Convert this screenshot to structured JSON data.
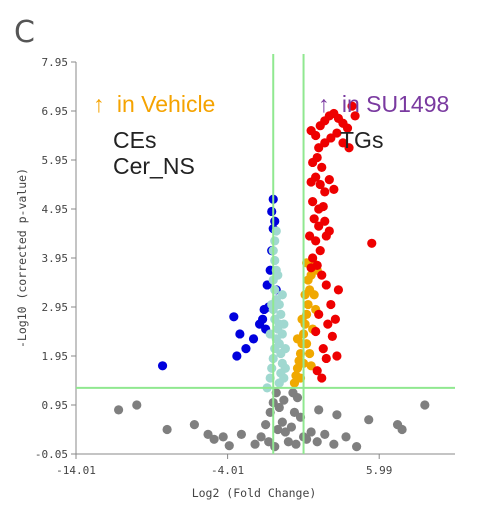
{
  "panel_label": "C",
  "annotations": {
    "left_arrow": "↑",
    "left_text": "in Vehicle",
    "left_color": "#f5a300",
    "right_arrow": "↑",
    "right_text": "in SU1498",
    "right_color": "#7a3aa0",
    "left_lipids": [
      "CEs",
      "Cer_NS"
    ],
    "right_lipids": [
      "TGs"
    ],
    "lipid_text_color": "#222222"
  },
  "chart_data": {
    "type": "scatter",
    "xlabel": "Log2 (Fold Change)",
    "ylabel": "-Log10 (corrected p-value)",
    "xlim": [
      -14.01,
      10.99
    ],
    "ylim": [
      -0.05,
      7.95
    ],
    "x_ticks": [
      "-14.01",
      "-4.01",
      "5.99"
    ],
    "x_tick_values": [
      -14.01,
      -4.01,
      5.99
    ],
    "y_ticks": [
      "7.95",
      "6.95",
      "5.95",
      "4.95",
      "3.95",
      "2.95",
      "1.95",
      "0.95",
      "-0.05"
    ],
    "y_tick_values": [
      7.95,
      6.95,
      5.95,
      4.95,
      3.95,
      2.95,
      1.95,
      0.95,
      -0.05
    ],
    "thresholds": {
      "x": [
        -1,
        1
      ],
      "y": 1.3,
      "color": "#90e890"
    },
    "series": [
      {
        "color": "#7f7f7f",
        "points": [
          [
            -10.0,
            0.95
          ],
          [
            -11.2,
            0.85
          ],
          [
            -8.0,
            0.45
          ],
          [
            -6.2,
            0.55
          ],
          [
            -5.3,
            0.35
          ],
          [
            -4.9,
            0.25
          ],
          [
            -4.3,
            0.3
          ],
          [
            -3.1,
            0.35
          ],
          [
            -3.9,
            0.12
          ],
          [
            -2.2,
            0.15
          ],
          [
            -1.8,
            0.3
          ],
          [
            -1.5,
            0.55
          ],
          [
            -1.2,
            0.8
          ],
          [
            -1.0,
            1.0
          ],
          [
            -0.8,
            1.2
          ],
          [
            -0.6,
            0.9
          ],
          [
            -0.4,
            0.6
          ],
          [
            -0.2,
            0.4
          ],
          [
            0.0,
            0.2
          ],
          [
            0.2,
            0.5
          ],
          [
            0.4,
            0.8
          ],
          [
            0.6,
            1.1
          ],
          [
            0.8,
            0.7
          ],
          [
            1.0,
            0.3
          ],
          [
            -0.9,
            0.1
          ],
          [
            -0.3,
            1.05
          ],
          [
            0.3,
            1.2
          ],
          [
            -0.7,
            0.45
          ],
          [
            0.5,
            0.15
          ],
          [
            -1.3,
            0.2
          ],
          [
            1.2,
            0.25
          ],
          [
            1.5,
            0.4
          ],
          [
            1.9,
            0.2
          ],
          [
            2.4,
            0.35
          ],
          [
            3.0,
            0.15
          ],
          [
            3.8,
            0.3
          ],
          [
            4.5,
            0.1
          ],
          [
            5.3,
            0.65
          ],
          [
            3.2,
            0.75
          ],
          [
            2.0,
            0.85
          ],
          [
            7.2,
            0.55
          ],
          [
            7.5,
            0.45
          ],
          [
            9.0,
            0.95
          ]
        ]
      },
      {
        "color": "#0000dd",
        "points": [
          [
            -8.3,
            1.75
          ],
          [
            -3.6,
            2.75
          ],
          [
            -3.2,
            2.4
          ],
          [
            -3.4,
            1.95
          ],
          [
            -2.8,
            2.1
          ],
          [
            -2.3,
            2.3
          ],
          [
            -1.9,
            2.6
          ],
          [
            -1.6,
            2.9
          ],
          [
            -1.4,
            3.4
          ],
          [
            -1.2,
            3.7
          ],
          [
            -1.1,
            4.1
          ],
          [
            -1.0,
            4.55
          ],
          [
            -1.1,
            4.9
          ],
          [
            -1.0,
            5.15
          ],
          [
            -0.9,
            4.7
          ],
          [
            -0.8,
            3.3
          ],
          [
            -1.3,
            2.95
          ],
          [
            -1.5,
            2.5
          ],
          [
            -1.7,
            2.7
          ]
        ]
      },
      {
        "color": "#a0d8d0",
        "points": [
          [
            -1.4,
            1.3
          ],
          [
            -1.2,
            1.5
          ],
          [
            -1.1,
            1.7
          ],
          [
            -1.0,
            1.9
          ],
          [
            -0.9,
            2.1
          ],
          [
            -0.8,
            2.3
          ],
          [
            -0.7,
            2.5
          ],
          [
            -0.9,
            2.7
          ],
          [
            -1.0,
            2.9
          ],
          [
            -0.8,
            3.1
          ],
          [
            -0.9,
            3.3
          ],
          [
            -1.0,
            3.5
          ],
          [
            -0.8,
            3.7
          ],
          [
            -0.9,
            3.9
          ],
          [
            -1.0,
            4.1
          ],
          [
            -0.9,
            4.3
          ],
          [
            -0.8,
            4.5
          ],
          [
            -0.6,
            1.4
          ],
          [
            -0.5,
            1.6
          ],
          [
            -0.4,
            1.8
          ],
          [
            -0.5,
            2.0
          ],
          [
            -0.6,
            2.2
          ],
          [
            -0.4,
            2.4
          ],
          [
            -0.3,
            2.6
          ],
          [
            -0.5,
            2.8
          ],
          [
            -0.6,
            3.0
          ],
          [
            -0.4,
            3.2
          ],
          [
            -0.3,
            1.5
          ],
          [
            -0.2,
            1.7
          ],
          [
            -0.2,
            2.1
          ],
          [
            -1.2,
            2.4
          ],
          [
            -1.1,
            3.0
          ],
          [
            -0.7,
            3.6
          ],
          [
            -0.6,
            2.6
          ]
        ]
      },
      {
        "color": "#f0a800",
        "points": [
          [
            0.4,
            1.4
          ],
          [
            0.5,
            1.55
          ],
          [
            0.6,
            1.7
          ],
          [
            0.7,
            1.85
          ],
          [
            0.8,
            2.0
          ],
          [
            0.9,
            2.2
          ],
          [
            1.0,
            2.4
          ],
          [
            1.1,
            2.6
          ],
          [
            1.2,
            2.8
          ],
          [
            1.3,
            3.0
          ],
          [
            1.4,
            3.3
          ],
          [
            1.5,
            3.6
          ],
          [
            1.6,
            3.9
          ],
          [
            1.2,
            2.2
          ],
          [
            1.0,
            1.8
          ],
          [
            0.8,
            1.5
          ],
          [
            1.4,
            2.0
          ],
          [
            1.6,
            2.5
          ],
          [
            1.8,
            2.9
          ],
          [
            1.3,
            3.5
          ],
          [
            1.1,
            3.2
          ],
          [
            1.5,
            1.75
          ],
          [
            1.7,
            3.2
          ],
          [
            1.9,
            3.7
          ],
          [
            0.6,
            2.3
          ],
          [
            0.9,
            2.7
          ],
          [
            1.2,
            3.85
          ]
        ]
      },
      {
        "color": "#ee0000",
        "points": [
          [
            1.5,
            6.55
          ],
          [
            1.8,
            6.45
          ],
          [
            2.1,
            6.65
          ],
          [
            2.4,
            6.75
          ],
          [
            2.7,
            6.85
          ],
          [
            3.0,
            6.9
          ],
          [
            3.3,
            6.8
          ],
          [
            3.6,
            6.7
          ],
          [
            3.9,
            6.6
          ],
          [
            4.2,
            7.05
          ],
          [
            4.4,
            6.85
          ],
          [
            2.0,
            6.2
          ],
          [
            2.4,
            6.3
          ],
          [
            2.8,
            6.4
          ],
          [
            3.2,
            6.5
          ],
          [
            3.6,
            6.3
          ],
          [
            4.0,
            6.2
          ],
          [
            1.6,
            5.9
          ],
          [
            1.9,
            6.0
          ],
          [
            2.2,
            5.8
          ],
          [
            1.5,
            5.5
          ],
          [
            1.8,
            5.6
          ],
          [
            2.1,
            5.45
          ],
          [
            2.4,
            5.3
          ],
          [
            2.7,
            5.55
          ],
          [
            3.0,
            5.35
          ],
          [
            1.6,
            5.1
          ],
          [
            2.0,
            4.95
          ],
          [
            2.3,
            5.0
          ],
          [
            1.7,
            4.75
          ],
          [
            2.0,
            4.6
          ],
          [
            2.4,
            4.7
          ],
          [
            2.7,
            4.5
          ],
          [
            1.8,
            4.3
          ],
          [
            2.1,
            4.1
          ],
          [
            2.5,
            4.4
          ],
          [
            5.5,
            4.25
          ],
          [
            1.6,
            3.95
          ],
          [
            1.9,
            3.8
          ],
          [
            2.2,
            3.6
          ],
          [
            2.5,
            3.4
          ],
          [
            2.8,
            3.0
          ],
          [
            3.1,
            2.7
          ],
          [
            3.3,
            3.3
          ],
          [
            2.6,
            2.6
          ],
          [
            2.3,
            2.1
          ],
          [
            2.9,
            2.35
          ],
          [
            2.5,
            1.9
          ],
          [
            1.8,
            2.45
          ],
          [
            2.0,
            2.8
          ],
          [
            3.2,
            1.95
          ],
          [
            1.9,
            1.65
          ],
          [
            2.2,
            1.5
          ],
          [
            1.4,
            4.4
          ],
          [
            1.5,
            3.75
          ]
        ]
      }
    ]
  }
}
